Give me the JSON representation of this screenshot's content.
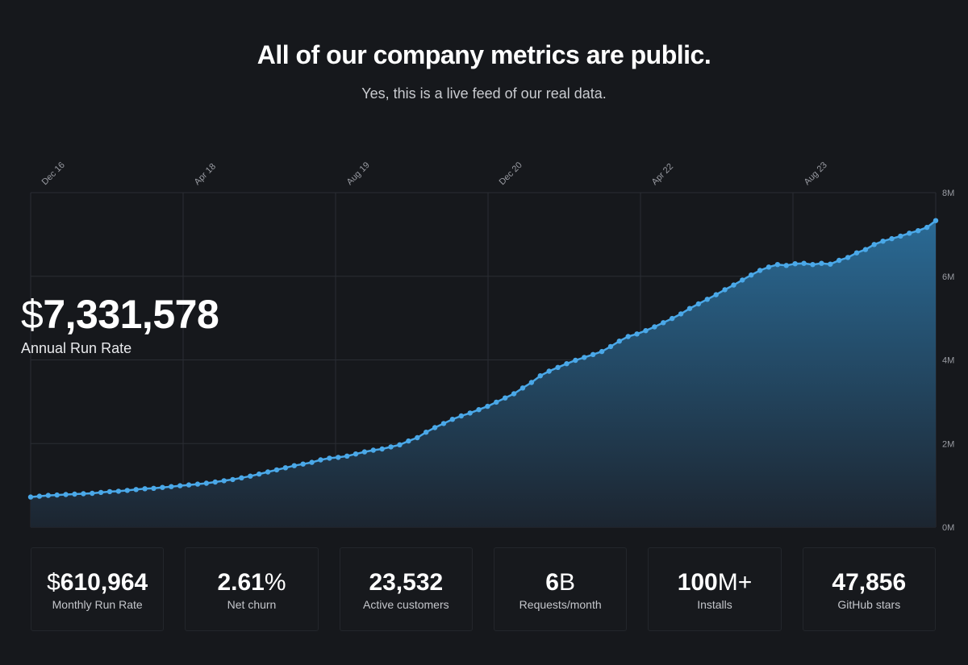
{
  "header": {
    "title": "All of our company metrics are public.",
    "subtitle": "Yes, this is a live feed of our real data."
  },
  "arr": {
    "currency": "$",
    "value": "7,331,578",
    "label": "Annual Run Rate"
  },
  "stats": [
    {
      "prefix": "$",
      "value": "610,964",
      "suffix": "",
      "label": "Monthly Run Rate"
    },
    {
      "prefix": "",
      "value": "2.61",
      "suffix": "%",
      "label": "Net churn"
    },
    {
      "prefix": "",
      "value": "23,532",
      "suffix": "",
      "label": "Active customers"
    },
    {
      "prefix": "",
      "value": "6",
      "suffix": "B",
      "label": "Requests/month"
    },
    {
      "prefix": "",
      "value": "100",
      "suffix": "M+",
      "label": "Installs"
    },
    {
      "prefix": "",
      "value": "47,856",
      "suffix": "",
      "label": "GitHub stars"
    }
  ],
  "colors": {
    "background": "#16181c",
    "line": "#4aa8e8",
    "area_top": "#2a6a95",
    "area_bottom": "#1c2530",
    "grid": "#2a2d33",
    "axis_text": "#9a9ca3"
  },
  "chart_data": {
    "type": "area",
    "title": "",
    "xlabel": "",
    "ylabel": "",
    "x_tick_labels": [
      "Dec 16",
      "Apr 18",
      "Aug 19",
      "Dec 20",
      "Apr 22",
      "Aug 23"
    ],
    "y_tick_labels": [
      "0M",
      "2M",
      "4M",
      "6M",
      "8M"
    ],
    "ylim": [
      0,
      8000000
    ],
    "grid": true,
    "series": [
      {
        "values": [
          720000,
          740000,
          760000,
          770000,
          780000,
          790000,
          800000,
          810000,
          830000,
          850000,
          860000,
          880000,
          900000,
          920000,
          930000,
          950000,
          970000,
          990000,
          1010000,
          1030000,
          1050000,
          1080000,
          1110000,
          1140000,
          1180000,
          1220000,
          1270000,
          1320000,
          1370000,
          1420000,
          1470000,
          1510000,
          1550000,
          1610000,
          1650000,
          1670000,
          1700000,
          1750000,
          1800000,
          1840000,
          1870000,
          1920000,
          1970000,
          2060000,
          2140000,
          2270000,
          2380000,
          2480000,
          2580000,
          2660000,
          2730000,
          2810000,
          2890000,
          2990000,
          3090000,
          3190000,
          3330000,
          3460000,
          3620000,
          3730000,
          3820000,
          3910000,
          3990000,
          4060000,
          4130000,
          4200000,
          4320000,
          4450000,
          4560000,
          4620000,
          4700000,
          4790000,
          4890000,
          4990000,
          5100000,
          5230000,
          5340000,
          5450000,
          5560000,
          5680000,
          5790000,
          5910000,
          6030000,
          6140000,
          6220000,
          6280000,
          6260000,
          6300000,
          6310000,
          6280000,
          6310000,
          6290000,
          6380000,
          6450000,
          6560000,
          6640000,
          6760000,
          6840000,
          6900000,
          6960000,
          7030000,
          7090000,
          7170000,
          7331578
        ]
      }
    ]
  }
}
